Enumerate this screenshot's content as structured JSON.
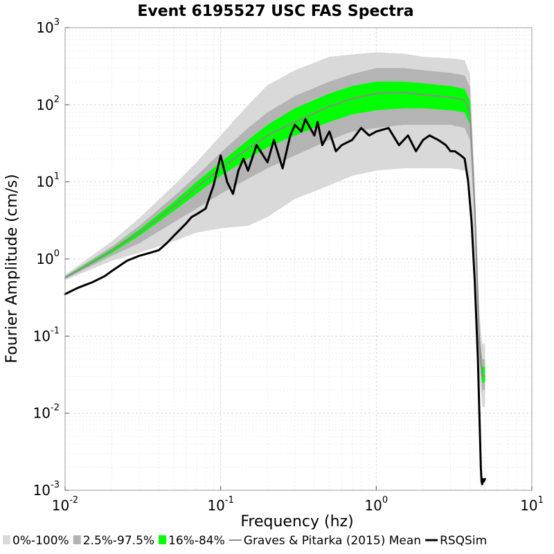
{
  "chart_data": {
    "type": "line",
    "title": "Event 6195527 USC FAS Spectra",
    "xlabel": "Frequency (hz)",
    "ylabel": "Fourier Amplitude (cm/s)",
    "xscale": "log",
    "yscale": "log",
    "xlim": [
      0.01,
      10
    ],
    "ylim": [
      0.001,
      1000
    ],
    "x_ticks": [
      {
        "base": "10",
        "exp": "-2"
      },
      {
        "base": "10",
        "exp": "-1"
      },
      {
        "base": "10",
        "exp": "0"
      },
      {
        "base": "10",
        "exp": "1"
      }
    ],
    "y_ticks": [
      {
        "base": "10",
        "exp": "-3"
      },
      {
        "base": "10",
        "exp": "-2"
      },
      {
        "base": "10",
        "exp": "-1"
      },
      {
        "base": "10",
        "exp": "0"
      },
      {
        "base": "10",
        "exp": "1"
      },
      {
        "base": "10",
        "exp": "2"
      },
      {
        "base": "10",
        "exp": "3"
      }
    ],
    "grid": true,
    "legend_position": "bottom",
    "legend": [
      {
        "label": "0%-100%",
        "color": "#d9d9d9",
        "kind": "box"
      },
      {
        "label": "2.5%-97.5%",
        "color": "#b4b4b4",
        "kind": "box"
      },
      {
        "label": "16%-84%",
        "color": "#00ff00",
        "kind": "box"
      },
      {
        "label": "Graves & Pitarka (2015) Mean",
        "color": "#8c8c8c",
        "kind": "line"
      },
      {
        "label": "RSQSim",
        "color": "#000000",
        "kind": "line"
      }
    ],
    "bands": [
      {
        "name": "0%-100%",
        "color": "#d9d9d9",
        "x": [
          0.01,
          0.02,
          0.03,
          0.05,
          0.07,
          0.1,
          0.15,
          0.2,
          0.3,
          0.5,
          0.7,
          1.0,
          1.5,
          2.0,
          3.0,
          3.7,
          4.0,
          4.3,
          4.6,
          4.8,
          5.0
        ],
        "lower": [
          0.53,
          0.95,
          1.2,
          1.7,
          2.2,
          2.5,
          2.7,
          3.5,
          6.0,
          9.0,
          12.0,
          14.0,
          15.0,
          15.0,
          15.0,
          14.0,
          10.0,
          1.0,
          0.03,
          0.012,
          0.012
        ],
        "upper": [
          0.62,
          1.7,
          3.4,
          9.0,
          18.0,
          40.0,
          100.0,
          180.0,
          280.0,
          420.0,
          450.0,
          480.0,
          460.0,
          420.0,
          400.0,
          380.0,
          250.0,
          10.0,
          0.2,
          0.08,
          0.08
        ]
      },
      {
        "name": "2.5%-97.5%",
        "color": "#b4b4b4",
        "x": [
          0.01,
          0.02,
          0.03,
          0.05,
          0.07,
          0.1,
          0.15,
          0.2,
          0.3,
          0.5,
          0.7,
          1.0,
          1.5,
          2.0,
          3.0,
          3.7,
          4.0,
          4.3,
          4.6,
          4.8,
          5.0
        ],
        "lower": [
          0.55,
          1.1,
          1.6,
          3.0,
          4.5,
          7.0,
          11.0,
          15.0,
          22.0,
          35.0,
          45.0,
          50.0,
          55.0,
          55.0,
          55.0,
          50.0,
          35.0,
          3.0,
          0.05,
          0.02,
          0.02
        ],
        "upper": [
          0.6,
          1.45,
          2.7,
          6.5,
          12.0,
          24.0,
          50.0,
          80.0,
          130.0,
          200.0,
          250.0,
          300.0,
          300.0,
          280.0,
          260.0,
          240.0,
          170.0,
          6.0,
          0.12,
          0.05,
          0.05
        ]
      },
      {
        "name": "16%-84%",
        "color": "#00ff00",
        "x": [
          0.01,
          0.02,
          0.03,
          0.05,
          0.07,
          0.1,
          0.15,
          0.2,
          0.3,
          0.5,
          0.7,
          1.0,
          1.5,
          2.0,
          3.0,
          3.7,
          4.0,
          4.3,
          4.6,
          4.8,
          5.0
        ],
        "lower": [
          0.56,
          1.2,
          2.0,
          4.2,
          7.0,
          12.0,
          20.0,
          28.0,
          40.0,
          60.0,
          75.0,
          85.0,
          90.0,
          90.0,
          85.0,
          80.0,
          55.0,
          4.0,
          0.07,
          0.025,
          0.025
        ],
        "upper": [
          0.59,
          1.35,
          2.4,
          5.5,
          10.0,
          18.0,
          35.0,
          55.0,
          90.0,
          140.0,
          175.0,
          200.0,
          200.0,
          190.0,
          175.0,
          160.0,
          110.0,
          5.0,
          0.09,
          0.04,
          0.04
        ]
      }
    ],
    "series": [
      {
        "name": "Graves & Pitarka (2015) Mean",
        "color": "#8c8c8c",
        "x": [
          0.01,
          0.015,
          0.02,
          0.03,
          0.05,
          0.07,
          0.1,
          0.15,
          0.2,
          0.3,
          0.5,
          0.7,
          1.0,
          1.5,
          2.0,
          3.0,
          3.7,
          4.0,
          4.3,
          4.6,
          4.8,
          5.0
        ],
        "y": [
          0.57,
          0.9,
          1.3,
          2.2,
          4.8,
          8.5,
          15.0,
          27.0,
          40.0,
          60.0,
          95.0,
          120.0,
          140.0,
          145.0,
          135.0,
          125.0,
          115.0,
          80.0,
          4.5,
          0.08,
          0.03,
          0.03
        ]
      },
      {
        "name": "RSQSim",
        "color": "#000000",
        "x": [
          0.01,
          0.012,
          0.015,
          0.018,
          0.02,
          0.025,
          0.03,
          0.035,
          0.04,
          0.045,
          0.05,
          0.06,
          0.065,
          0.07,
          0.08,
          0.09,
          0.1,
          0.11,
          0.12,
          0.13,
          0.14,
          0.15,
          0.17,
          0.2,
          0.22,
          0.25,
          0.28,
          0.3,
          0.33,
          0.35,
          0.4,
          0.42,
          0.45,
          0.5,
          0.55,
          0.6,
          0.7,
          0.8,
          0.9,
          1.0,
          1.2,
          1.4,
          1.6,
          1.8,
          2.0,
          2.2,
          2.5,
          2.8,
          3.0,
          3.2,
          3.5,
          3.7,
          3.9,
          4.1,
          4.3,
          4.5,
          4.6,
          4.7,
          4.75,
          4.8,
          4.85,
          4.9,
          5.0
        ],
        "y": [
          0.35,
          0.42,
          0.5,
          0.6,
          0.7,
          0.95,
          1.1,
          1.2,
          1.3,
          1.6,
          2.0,
          2.9,
          3.5,
          3.8,
          4.5,
          9.0,
          22.0,
          10.0,
          7.0,
          14.0,
          20.0,
          14.0,
          30.0,
          18.0,
          35.0,
          15.0,
          40.0,
          55.0,
          45.0,
          65.0,
          40.0,
          60.0,
          30.0,
          45.0,
          25.0,
          30.0,
          35.0,
          50.0,
          40.0,
          45.0,
          50.0,
          30.0,
          40.0,
          25.0,
          35.0,
          40.0,
          35.0,
          30.0,
          25.0,
          25.0,
          22.0,
          20.0,
          10.0,
          3.0,
          0.5,
          0.05,
          0.01,
          0.002,
          0.0013,
          0.0012,
          0.0014,
          0.0013,
          0.0014
        ]
      }
    ]
  }
}
